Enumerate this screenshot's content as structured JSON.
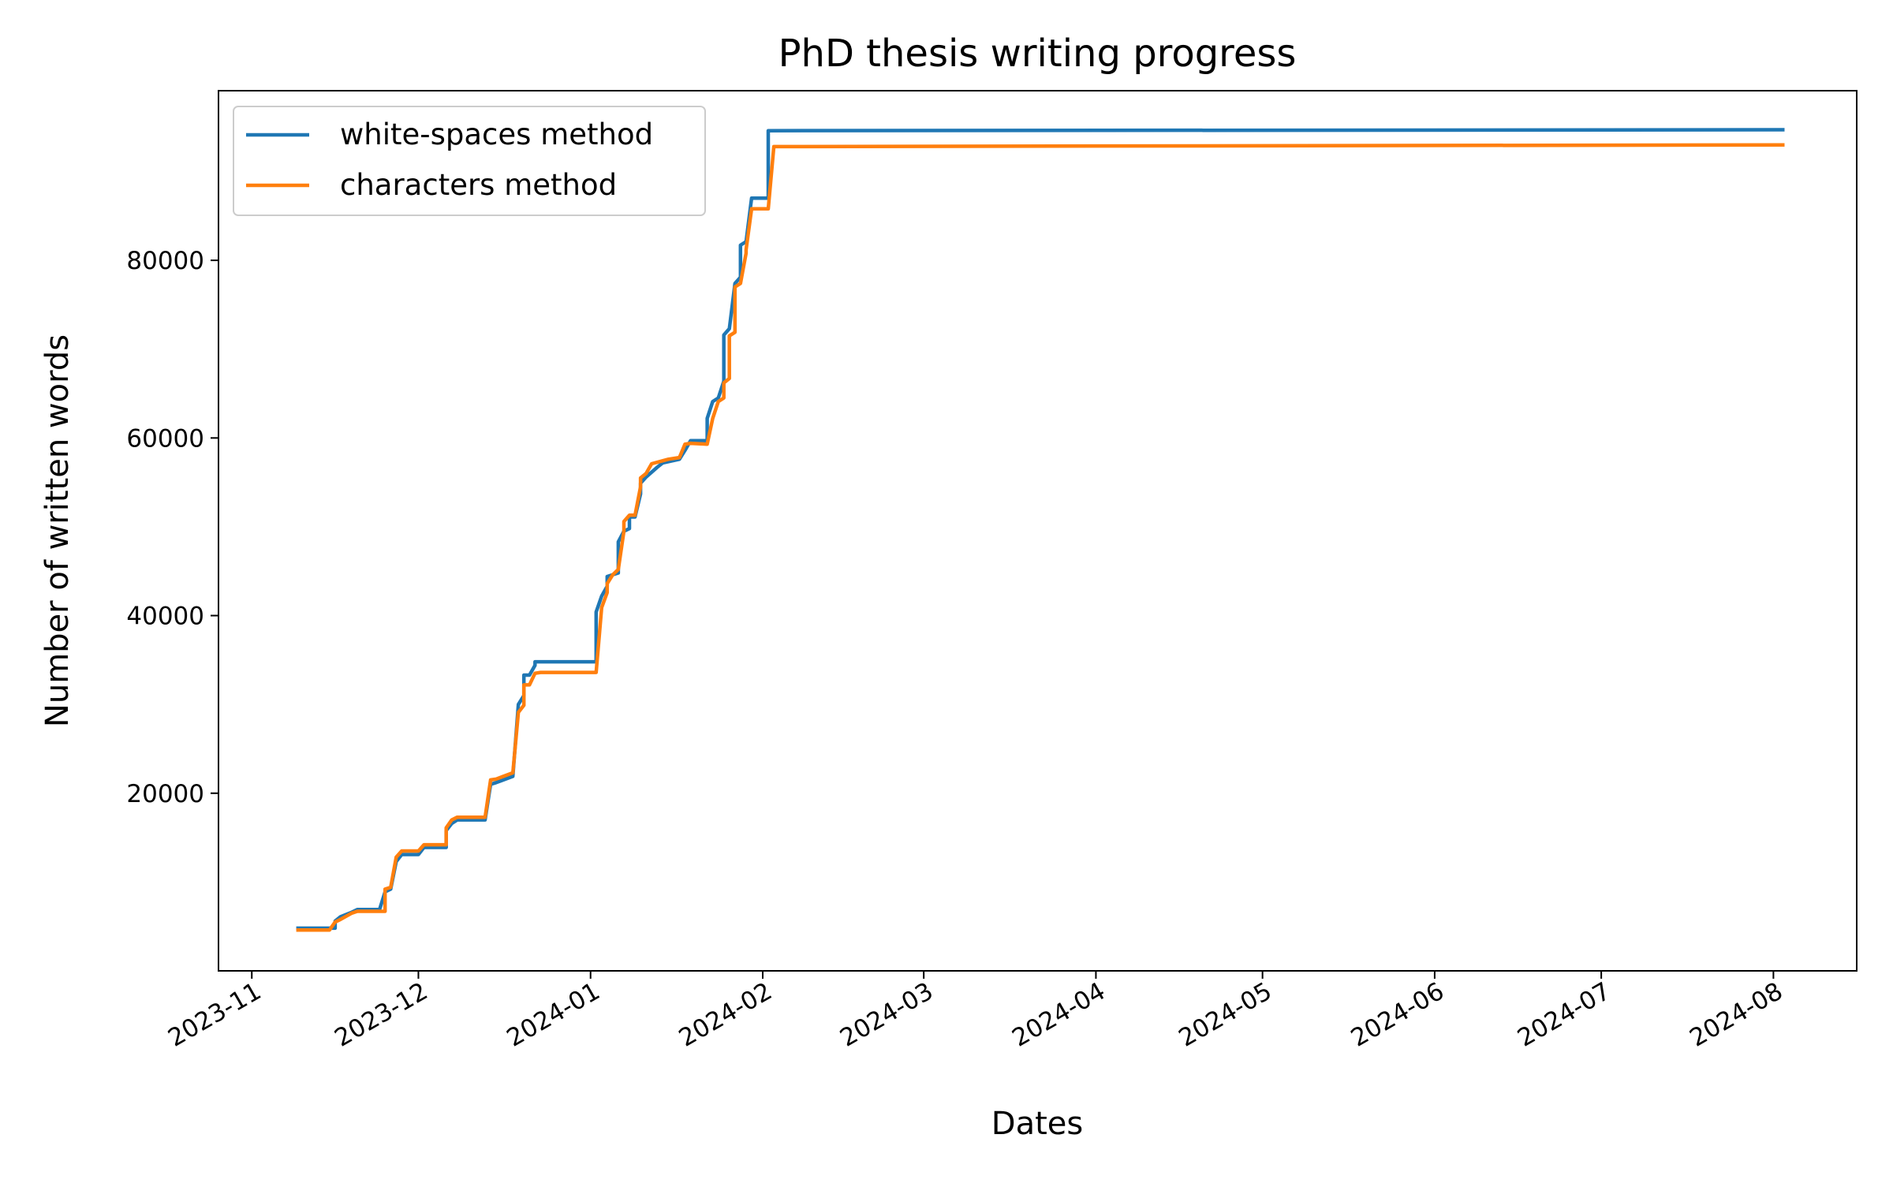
{
  "chart_data": {
    "type": "line",
    "title": "PhD thesis writing progress",
    "xlabel": "Dates",
    "ylabel": "Number of written words",
    "legend": "upper left",
    "grid": false,
    "xlim": [
      "2023-10-26",
      "2024-08-16"
    ],
    "xticks": [
      {
        "value": "2023-11-01",
        "label": "2023-11"
      },
      {
        "value": "2023-12-01",
        "label": "2023-12"
      },
      {
        "value": "2024-01-01",
        "label": "2024-01"
      },
      {
        "value": "2024-02-01",
        "label": "2024-02"
      },
      {
        "value": "2024-03-01",
        "label": "2024-03"
      },
      {
        "value": "2024-04-01",
        "label": "2024-04"
      },
      {
        "value": "2024-05-01",
        "label": "2024-05"
      },
      {
        "value": "2024-06-01",
        "label": "2024-06"
      },
      {
        "value": "2024-07-01",
        "label": "2024-07"
      },
      {
        "value": "2024-08-01",
        "label": "2024-08"
      }
    ],
    "ylim": [
      0,
      99100
    ],
    "yticks": [
      20000,
      40000,
      60000,
      80000
    ],
    "series": [
      {
        "name": "white-spaces method",
        "color": "#1f77b4",
        "x": [
          "2023-11-09",
          "2023-11-16",
          "2023-11-16",
          "2023-11-17",
          "2023-11-19",
          "2023-11-20",
          "2023-11-24",
          "2023-11-25",
          "2023-11-26",
          "2023-11-27",
          "2023-11-28",
          "2023-12-01",
          "2023-12-02",
          "2023-12-06",
          "2023-12-06",
          "2023-12-07",
          "2023-12-08",
          "2023-12-13",
          "2023-12-14",
          "2023-12-15",
          "2023-12-18",
          "2023-12-19",
          "2023-12-20",
          "2023-12-20",
          "2023-12-21",
          "2023-12-22",
          "2023-12-22",
          "2024-01-02",
          "2024-01-02",
          "2024-01-03",
          "2024-01-04",
          "2024-01-04",
          "2024-01-06",
          "2024-01-06",
          "2024-01-07",
          "2024-01-08",
          "2024-01-08",
          "2024-01-09",
          "2024-01-10",
          "2024-01-10",
          "2024-01-11",
          "2024-01-13",
          "2024-01-14",
          "2024-01-17",
          "2024-01-18",
          "2024-01-19",
          "2024-01-22",
          "2024-01-22",
          "2024-01-23",
          "2024-01-24",
          "2024-01-25",
          "2024-01-25",
          "2024-01-25",
          "2024-01-26",
          "2024-01-27",
          "2024-01-28",
          "2024-01-28",
          "2024-01-29",
          "2024-01-30",
          "2024-02-02",
          "2024-02-02",
          "2024-08-03"
        ],
        "values": [
          4800,
          4800,
          5600,
          6100,
          6600,
          6900,
          6900,
          8900,
          9200,
          12300,
          13100,
          13100,
          13900,
          13900,
          15800,
          16600,
          17000,
          17000,
          21000,
          21200,
          21900,
          30000,
          31000,
          33300,
          33300,
          34400,
          34800,
          34800,
          40400,
          42200,
          43300,
          44400,
          44800,
          48300,
          49500,
          49800,
          51100,
          51100,
          53700,
          54900,
          55600,
          56700,
          57200,
          57600,
          58600,
          59700,
          59700,
          62200,
          64100,
          64500,
          66400,
          66700,
          71600,
          72300,
          77400,
          78100,
          81700,
          82100,
          87000,
          87000,
          94600,
          94700
        ]
      },
      {
        "name": "characters method",
        "color": "#ff7f0e",
        "x": [
          "2023-11-09",
          "2023-11-15",
          "2023-11-16",
          "2023-11-17",
          "2023-11-19",
          "2023-11-20",
          "2023-11-25",
          "2023-11-25",
          "2023-11-26",
          "2023-11-27",
          "2023-11-28",
          "2023-12-01",
          "2023-12-02",
          "2023-12-06",
          "2023-12-06",
          "2023-12-07",
          "2023-12-08",
          "2023-12-13",
          "2023-12-14",
          "2023-12-15",
          "2023-12-18",
          "2023-12-19",
          "2023-12-20",
          "2023-12-20",
          "2023-12-21",
          "2023-12-22",
          "2023-12-23",
          "2024-01-02",
          "2024-01-03",
          "2024-01-04",
          "2024-01-04",
          "2024-01-05",
          "2024-01-06",
          "2024-01-07",
          "2024-01-07",
          "2024-01-08",
          "2024-01-09",
          "2024-01-10",
          "2024-01-10",
          "2024-01-11",
          "2024-01-12",
          "2024-01-15",
          "2024-01-17",
          "2024-01-18",
          "2024-01-19",
          "2024-01-22",
          "2024-01-23",
          "2024-01-24",
          "2024-01-25",
          "2024-01-25",
          "2024-01-26",
          "2024-01-26",
          "2024-01-27",
          "2024-01-27",
          "2024-01-28",
          "2024-01-29",
          "2024-01-29",
          "2024-01-30",
          "2024-02-02",
          "2024-02-03",
          "2024-08-03"
        ],
        "values": [
          4600,
          4600,
          5500,
          5800,
          6500,
          6700,
          6700,
          9200,
          9400,
          12800,
          13500,
          13500,
          14200,
          14200,
          16100,
          17000,
          17300,
          17300,
          21500,
          21600,
          22300,
          29100,
          29900,
          32200,
          32200,
          33500,
          33600,
          33600,
          40900,
          42600,
          43600,
          44600,
          45200,
          49500,
          50600,
          51300,
          51300,
          54500,
          55500,
          56000,
          57100,
          57600,
          57800,
          59300,
          59400,
          59300,
          62200,
          64100,
          64500,
          66200,
          66700,
          71500,
          71900,
          77000,
          77400,
          80800,
          81200,
          85800,
          85800,
          92800,
          93000
        ]
      }
    ]
  }
}
